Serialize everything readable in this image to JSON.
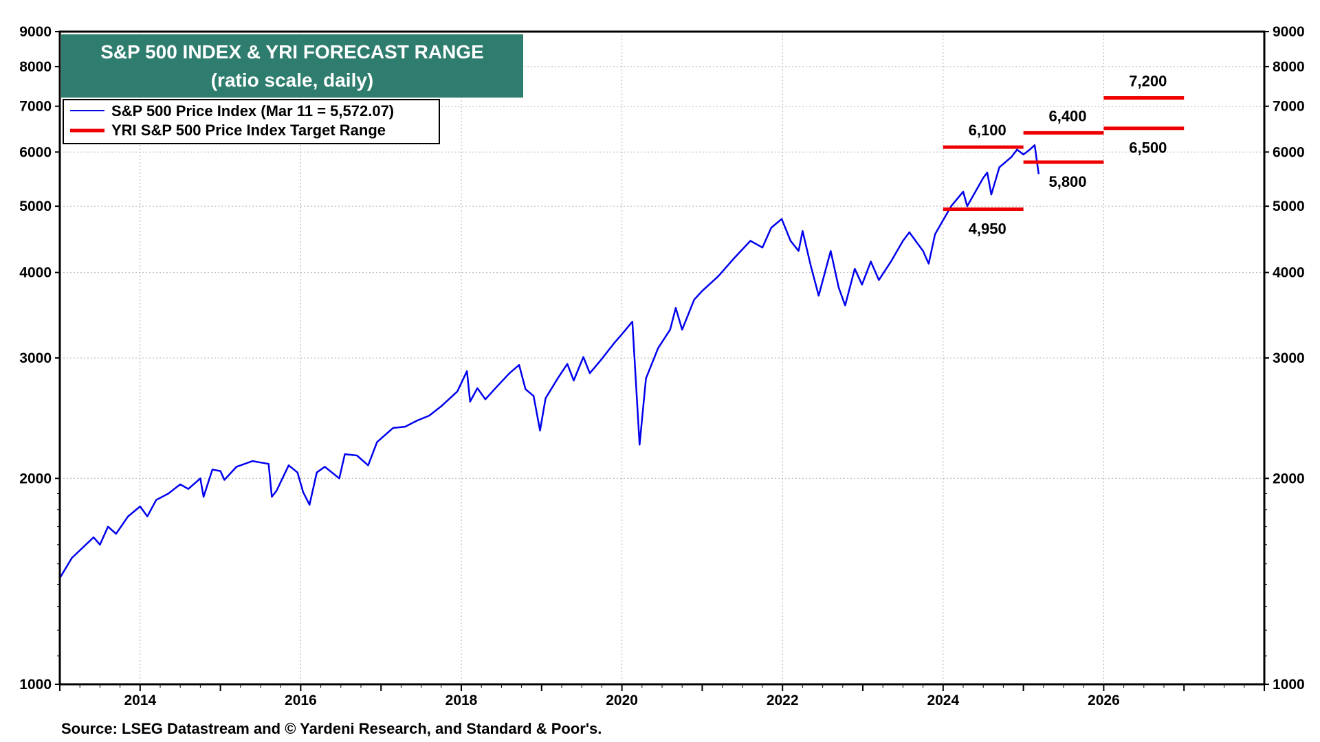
{
  "chart_data": {
    "type": "line",
    "title": "S&P 500 INDEX & YRI FORECAST RANGE",
    "subtitle": "(ratio scale, daily)",
    "scale": "log",
    "grid": true,
    "legend_position": "top-left",
    "title_bg_color": "#2e7d6e",
    "xlim": [
      2013.0,
      2028.0
    ],
    "ylim": [
      1000,
      9000
    ],
    "x_ticks": [
      2014,
      2016,
      2018,
      2020,
      2022,
      2024,
      2026
    ],
    "x_tick_labels": [
      "2014",
      "2016",
      "2018",
      "2020",
      "2022",
      "2024",
      "2026"
    ],
    "y_ticks": [
      1000,
      2000,
      3000,
      4000,
      5000,
      6000,
      7000,
      8000,
      9000
    ],
    "y_tick_labels": [
      "1000",
      "2000",
      "3000",
      "4000",
      "5000",
      "6000",
      "7000",
      "8000",
      "9000"
    ],
    "series": [
      {
        "name": "S&P 500 Price Index (Mar 11 = 5,572.07)",
        "color": "#0000ee",
        "points": [
          [
            2013.0,
            1430
          ],
          [
            2013.15,
            1530
          ],
          [
            2013.3,
            1590
          ],
          [
            2013.42,
            1640
          ],
          [
            2013.5,
            1600
          ],
          [
            2013.6,
            1700
          ],
          [
            2013.7,
            1660
          ],
          [
            2013.85,
            1760
          ],
          [
            2014.0,
            1820
          ],
          [
            2014.09,
            1760
          ],
          [
            2014.2,
            1860
          ],
          [
            2014.35,
            1900
          ],
          [
            2014.5,
            1960
          ],
          [
            2014.6,
            1930
          ],
          [
            2014.75,
            2000
          ],
          [
            2014.79,
            1880
          ],
          [
            2014.9,
            2060
          ],
          [
            2015.0,
            2050
          ],
          [
            2015.05,
            1990
          ],
          [
            2015.2,
            2080
          ],
          [
            2015.4,
            2120
          ],
          [
            2015.5,
            2110
          ],
          [
            2015.6,
            2100
          ],
          [
            2015.64,
            1880
          ],
          [
            2015.7,
            1920
          ],
          [
            2015.85,
            2090
          ],
          [
            2015.96,
            2040
          ],
          [
            2016.03,
            1910
          ],
          [
            2016.11,
            1830
          ],
          [
            2016.2,
            2040
          ],
          [
            2016.3,
            2080
          ],
          [
            2016.48,
            2000
          ],
          [
            2016.55,
            2170
          ],
          [
            2016.7,
            2160
          ],
          [
            2016.84,
            2090
          ],
          [
            2016.95,
            2260
          ],
          [
            2017.15,
            2370
          ],
          [
            2017.3,
            2380
          ],
          [
            2017.45,
            2430
          ],
          [
            2017.6,
            2470
          ],
          [
            2017.75,
            2550
          ],
          [
            2017.95,
            2680
          ],
          [
            2018.07,
            2870
          ],
          [
            2018.11,
            2590
          ],
          [
            2018.2,
            2710
          ],
          [
            2018.3,
            2610
          ],
          [
            2018.45,
            2730
          ],
          [
            2018.6,
            2850
          ],
          [
            2018.72,
            2930
          ],
          [
            2018.8,
            2700
          ],
          [
            2018.9,
            2640
          ],
          [
            2018.98,
            2350
          ],
          [
            2019.05,
            2620
          ],
          [
            2019.2,
            2800
          ],
          [
            2019.32,
            2940
          ],
          [
            2019.4,
            2780
          ],
          [
            2019.52,
            3010
          ],
          [
            2019.6,
            2850
          ],
          [
            2019.75,
            2990
          ],
          [
            2019.9,
            3150
          ],
          [
            2020.0,
            3250
          ],
          [
            2020.13,
            3390
          ],
          [
            2020.22,
            2240
          ],
          [
            2020.3,
            2800
          ],
          [
            2020.45,
            3100
          ],
          [
            2020.6,
            3300
          ],
          [
            2020.67,
            3550
          ],
          [
            2020.75,
            3300
          ],
          [
            2020.9,
            3650
          ],
          [
            2021.0,
            3760
          ],
          [
            2021.2,
            3950
          ],
          [
            2021.4,
            4200
          ],
          [
            2021.6,
            4450
          ],
          [
            2021.75,
            4350
          ],
          [
            2021.86,
            4650
          ],
          [
            2021.99,
            4790
          ],
          [
            2022.1,
            4450
          ],
          [
            2022.2,
            4300
          ],
          [
            2022.25,
            4600
          ],
          [
            2022.35,
            4100
          ],
          [
            2022.45,
            3700
          ],
          [
            2022.6,
            4300
          ],
          [
            2022.7,
            3800
          ],
          [
            2022.78,
            3580
          ],
          [
            2022.9,
            4050
          ],
          [
            2022.99,
            3840
          ],
          [
            2023.1,
            4150
          ],
          [
            2023.2,
            3900
          ],
          [
            2023.35,
            4150
          ],
          [
            2023.5,
            4450
          ],
          [
            2023.58,
            4580
          ],
          [
            2023.75,
            4300
          ],
          [
            2023.82,
            4120
          ],
          [
            2023.9,
            4550
          ],
          [
            2024.0,
            4770
          ],
          [
            2024.1,
            5000
          ],
          [
            2024.25,
            5250
          ],
          [
            2024.3,
            5000
          ],
          [
            2024.5,
            5500
          ],
          [
            2024.55,
            5600
          ],
          [
            2024.6,
            5200
          ],
          [
            2024.7,
            5700
          ],
          [
            2024.85,
            5900
          ],
          [
            2024.92,
            6050
          ],
          [
            2025.0,
            5950
          ],
          [
            2025.08,
            6050
          ],
          [
            2025.14,
            6140
          ],
          [
            2025.19,
            5572
          ]
        ]
      },
      {
        "name": "YRI S&P 500 Price Index Target Range",
        "color": "#ee0000",
        "segments": [
          {
            "x": [
              2024.0,
              2025.0
            ],
            "y": 4950,
            "label": "4,950"
          },
          {
            "x": [
              2024.0,
              2025.0
            ],
            "y": 6100,
            "label": "6,100"
          },
          {
            "x": [
              2025.0,
              2026.0
            ],
            "y": 5800,
            "label": "5,800"
          },
          {
            "x": [
              2025.0,
              2026.0
            ],
            "y": 6400,
            "label": "6,400"
          },
          {
            "x": [
              2026.0,
              2027.0
            ],
            "y": 6500,
            "label": "6,500"
          },
          {
            "x": [
              2026.0,
              2027.0
            ],
            "y": 7200,
            "label": "7,200"
          }
        ]
      }
    ],
    "source": "Source: LSEG Datastream and © Yardeni Research, and Standard & Poor's."
  }
}
